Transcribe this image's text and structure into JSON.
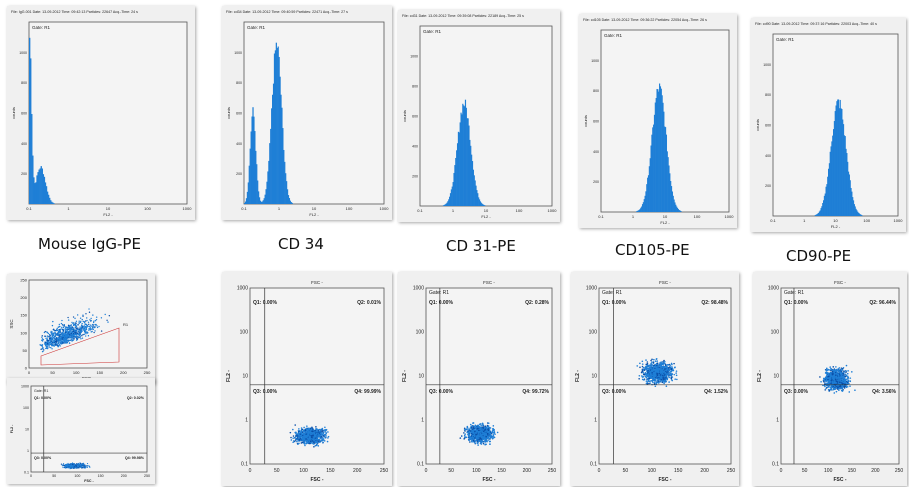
{
  "histograms": [
    {
      "caption": "Mouse IgG-PE",
      "header": "File: IgG.001  Date: 13-09-2012  Time: 09:42:13  Particles: 22647  Acq.-Time: 24 s",
      "gate": "Gate: R1",
      "xlabel": "FL2 -",
      "ylabel": "counts",
      "yticks": [
        "1000",
        "800",
        "600",
        "400",
        "200"
      ],
      "xticks": [
        "0.1",
        "1",
        "10",
        "100",
        "1000"
      ]
    },
    {
      "caption": "CD 34",
      "header": "File: cd34  Date: 13-09-2012  Time: 09:40:59  Particles: 22471  Acq.-Time: 27 s",
      "gate": "Gate: R1",
      "xlabel": "FL2 -",
      "ylabel": "counts",
      "yticks": [
        "1000",
        "800",
        "600",
        "400",
        "200"
      ],
      "xticks": [
        "0.1",
        "1",
        "10",
        "100",
        "1000"
      ]
    },
    {
      "caption": "CD 31-PE",
      "header": "File: cd31  Date: 13-09-2012  Time: 09:39:08  Particles: 22189  Acq.-Time: 25 s",
      "gate": "Gate: R1",
      "xlabel": "FL2 -",
      "ylabel": "counts",
      "yticks": [
        "1000",
        "800",
        "600",
        "400",
        "200"
      ],
      "xticks": [
        "0.1",
        "1",
        "10",
        "100",
        "1000"
      ]
    },
    {
      "caption": "CD105-PE",
      "header": "File: cd105  Date: 13-09-2012  Time: 09:36:22  Particles: 22054  Acq.-Time: 26 s",
      "gate": "Gate: R1",
      "xlabel": "FL2 -",
      "ylabel": "counts",
      "yticks": [
        "1000",
        "800",
        "600",
        "400",
        "200"
      ],
      "xticks": [
        "0.1",
        "1",
        "10",
        "100",
        "1000"
      ]
    },
    {
      "caption": "CD90-PE",
      "header": "File: cd90  Date: 13-09-2012  Time: 09:37:16  Particles: 22003  Acq.-Time: 40 s",
      "gate": "Gate: R1",
      "xlabel": "FL2 -",
      "ylabel": "counts",
      "yticks": [
        "1000",
        "800",
        "600",
        "400",
        "200"
      ],
      "xticks": [
        "0.1",
        "1",
        "10",
        "100",
        "1000"
      ]
    }
  ],
  "ssc_plot": {
    "ylabel": "SSC",
    "xlabel": "FSC -",
    "region": "R1",
    "xticks": [
      "0",
      "50",
      "100",
      "150",
      "200",
      "250"
    ],
    "yticks": [
      "250",
      "200",
      "150",
      "100",
      "50",
      "0"
    ]
  },
  "quads": [
    {
      "gate": "Gate: R1",
      "q1": "Q1: 0.00%",
      "q2": "Q2: 0.02%",
      "q3": "Q3: 0.00%",
      "q4": "Q4: 99.98%",
      "xlabel": "FSC -",
      "ylabel": "FL2 -",
      "yticks": [
        "1000",
        "100",
        "10",
        "1",
        "0.1"
      ],
      "xticks": [
        "0",
        "50",
        "100",
        "150",
        "200",
        "250"
      ]
    },
    {
      "gate": "",
      "q1": "Q1: 0.00%",
      "q2": "Q2: 0.01%",
      "q3": "Q3: 0.00%",
      "q4": "Q4: 99.99%",
      "xlabel": "FSC -",
      "ylabel": "FL2 -",
      "yticks": [
        "1000",
        "100",
        "10",
        "1",
        "0.1"
      ],
      "xticks": [
        "0",
        "50",
        "100",
        "150",
        "200",
        "250"
      ],
      "top_label": "FSC -"
    },
    {
      "gate": "Gate: R1",
      "q1": "Q1: 0.00%",
      "q2": "Q2: 0.28%",
      "q3": "Q3: 0.00%",
      "q4": "Q4: 99.72%",
      "xlabel": "FSC -",
      "ylabel": "FL2 -",
      "yticks": [
        "1000",
        "100",
        "10",
        "1",
        "0.1"
      ],
      "xticks": [
        "0",
        "50",
        "100",
        "150",
        "200",
        "250"
      ],
      "top_label": "FSC -"
    },
    {
      "gate": "Gate: R1",
      "q1": "Q1: 0.00%",
      "q2": "Q2: 98.48%",
      "q3": "Q3: 0.00%",
      "q4": "Q4: 1.52%",
      "xlabel": "FSC -",
      "ylabel": "FL2 -",
      "yticks": [
        "1000",
        "100",
        "10",
        "1",
        "0.1"
      ],
      "xticks": [
        "0",
        "50",
        "100",
        "150",
        "200",
        "250"
      ],
      "top_label": "FSC -"
    },
    {
      "gate": "Gate: R1",
      "q1": "Q1: 0.00%",
      "q2": "Q2: 96.44%",
      "q3": "Q3: 0.00%",
      "q4": "Q4: 3.56%",
      "xlabel": "FSC -",
      "ylabel": "FL2 -",
      "yticks": [
        "1000",
        "100",
        "10",
        "1",
        "0.1"
      ],
      "xticks": [
        "0",
        "50",
        "100",
        "150",
        "200",
        "250"
      ],
      "top_label": "FSC -"
    }
  ],
  "colors": {
    "dot": "#1f7fd6",
    "dot_dark": "#0a4fa8",
    "panel": "#f0f0f0",
    "axis": "#222222"
  }
}
